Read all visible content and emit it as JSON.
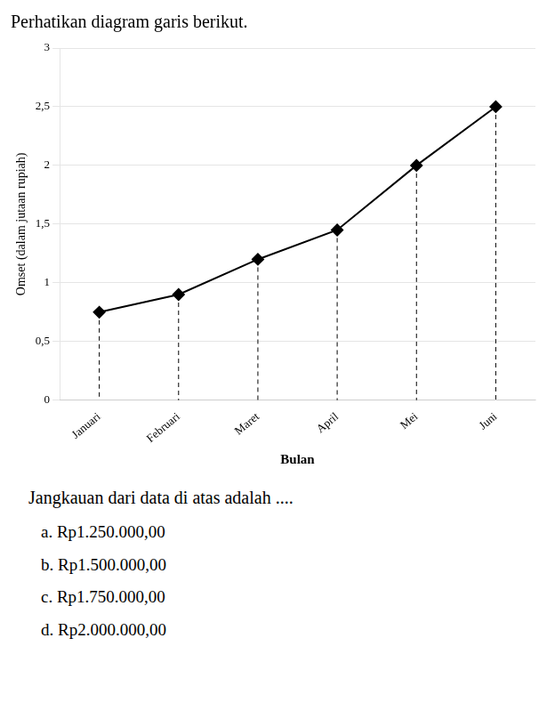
{
  "chart_data": {
    "type": "line",
    "title": "Perhatikan diagram garis berikut.",
    "categories": [
      "Januari",
      "Februari",
      "Maret",
      "April",
      "Mei",
      "Juni"
    ],
    "values": [
      0.75,
      0.9,
      1.2,
      1.45,
      2.0,
      2.5
    ],
    "color": "#000000",
    "marker": "diamond",
    "x_label": "Bulan",
    "y_label": "Omset (dalam jutaan rupiah)",
    "ylim": [
      0,
      3
    ],
    "yticks": [
      0,
      {
        "value": 0.5,
        "label": "0,5"
      },
      1,
      {
        "value": 1.5,
        "label": "1,5"
      },
      2,
      {
        "value": 2.5,
        "label": "2,5"
      },
      3
    ],
    "grid": "y",
    "annotations": [
      "Jangkauan dari data di atas adalah ....",
      "a. Rp1.250.000,00",
      "b. Rp1.500.000,00",
      "c. Rp1.750.000,00",
      "d. Rp2.000.000,00"
    ]
  }
}
